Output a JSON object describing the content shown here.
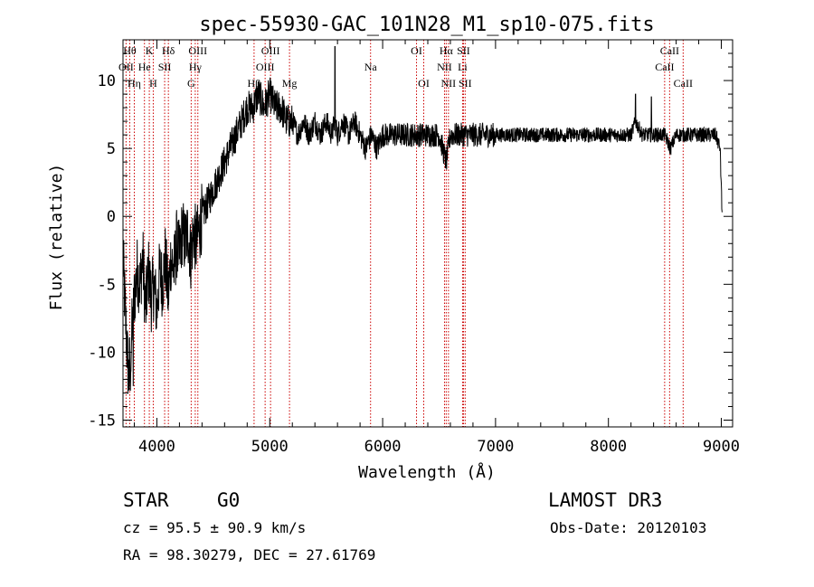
{
  "chart_data": {
    "type": "line",
    "title": "spec-55930-GAC_101N28_M1_sp10-075.fits",
    "xlabel": "Wavelength (Å)",
    "ylabel": "Flux (relative)",
    "xlim": [
      3700,
      9100
    ],
    "ylim": [
      -15.5,
      13
    ],
    "xticks": [
      {
        "value": 4000,
        "label": "4000"
      },
      {
        "value": 5000,
        "label": "5000"
      },
      {
        "value": 6000,
        "label": "6000"
      },
      {
        "value": 7000,
        "label": "7000"
      },
      {
        "value": 8000,
        "label": "8000"
      },
      {
        "value": 9000,
        "label": "9000"
      }
    ],
    "yticks": [
      {
        "value": 10,
        "label": "10"
      },
      {
        "value": 5,
        "label": "5"
      },
      {
        "value": 0,
        "label": "0"
      },
      {
        "value": -5,
        "label": "-5"
      },
      {
        "value": -10,
        "label": "-10"
      },
      {
        "value": -15,
        "label": "-15"
      }
    ],
    "line_color": "#000000",
    "marker_color": "#cc0000",
    "spectrum": {
      "x": [
        3700,
        3725,
        3750,
        3775,
        3800,
        3825,
        3850,
        3875,
        3900,
        3925,
        3950,
        3975,
        4000,
        4025,
        4050,
        4075,
        4100,
        4125,
        4150,
        4175,
        4200,
        4225,
        4250,
        4275,
        4300,
        4325,
        4350,
        4375,
        4400,
        4450,
        4500,
        4550,
        4600,
        4650,
        4700,
        4750,
        4800,
        4850,
        4900,
        4950,
        5000,
        5050,
        5100,
        5150,
        5200,
        5250,
        5300,
        5350,
        5400,
        5450,
        5500,
        5550,
        5575,
        5600,
        5650,
        5700,
        5750,
        5800,
        5850,
        5900,
        5950,
        6000,
        6100,
        6200,
        6300,
        6400,
        6500,
        6563,
        6600,
        6700,
        6800,
        6900,
        7000,
        7200,
        7400,
        7600,
        7800,
        8000,
        8100,
        8200,
        8240,
        8300,
        8400,
        8500,
        8550,
        8600,
        8650,
        8700,
        8750,
        8800,
        8850,
        8900,
        8950,
        8990,
        9005
      ],
      "y": [
        -3,
        -8,
        -12,
        -9,
        -6,
        -4,
        -5,
        -3,
        -7,
        -4,
        -6,
        -5,
        -7,
        -4,
        -5,
        -3,
        -6,
        -3,
        -4,
        -2,
        -3,
        -1,
        -2,
        -1,
        -3,
        -1,
        -2,
        -1,
        0,
        1,
        2,
        3,
        4,
        5,
        6,
        7,
        8,
        8,
        9,
        8,
        9,
        8,
        8,
        7,
        7,
        6,
        7,
        6,
        7,
        6,
        7,
        6,
        7,
        6,
        7,
        6,
        7,
        6,
        5,
        6,
        5,
        6,
        6,
        6,
        6,
        6,
        6,
        4,
        6,
        6,
        6,
        6,
        6,
        6,
        6,
        6,
        6,
        6,
        6,
        6,
        7,
        6,
        6,
        6,
        5,
        6,
        6,
        6,
        6,
        6,
        6,
        6,
        6,
        5,
        0.5
      ],
      "spikes": [
        {
          "x": 3765,
          "y": -12.8
        },
        {
          "x": 3790,
          "y": -12.5
        },
        {
          "x": 5577,
          "y": 12.5
        },
        {
          "x": 8240,
          "y": 9
        },
        {
          "x": 8380,
          "y": 8.8
        },
        {
          "x": 8990,
          "y": 5
        }
      ]
    },
    "line_markers": [
      {
        "x": 3760,
        "row": 0,
        "label": "Hθ"
      },
      {
        "x": 3727,
        "row": 1,
        "label": "OII"
      },
      {
        "x": 3800,
        "row": 2,
        "label": "Hη"
      },
      {
        "x": 3890,
        "row": 1,
        "label": "He"
      },
      {
        "x": 3933,
        "row": 0,
        "label": "K"
      },
      {
        "x": 3968,
        "row": 2,
        "label": "H"
      },
      {
        "x": 4069,
        "row": 1,
        "label": "SII"
      },
      {
        "x": 4102,
        "row": 0,
        "label": "Hδ"
      },
      {
        "x": 4340,
        "row": 1,
        "label": "Hγ"
      },
      {
        "x": 4363,
        "row": 0,
        "label": "OIII"
      },
      {
        "x": 4304,
        "row": 2,
        "label": "G"
      },
      {
        "x": 4861,
        "row": 2,
        "label": "Hβ"
      },
      {
        "x": 4959,
        "row": 1,
        "label": "OIII"
      },
      {
        "x": 5007,
        "row": 0,
        "label": "OIII"
      },
      {
        "x": 5175,
        "row": 2,
        "label": "Mg"
      },
      {
        "x": 5893,
        "row": 1,
        "label": "Na"
      },
      {
        "x": 6300,
        "row": 0,
        "label": "OI"
      },
      {
        "x": 6364,
        "row": 2,
        "label": "OI"
      },
      {
        "x": 6548,
        "row": 1,
        "label": "NII"
      },
      {
        "x": 6563,
        "row": 0,
        "label": "Hα"
      },
      {
        "x": 6583,
        "row": 2,
        "label": "NII"
      },
      {
        "x": 6708,
        "row": 1,
        "label": "Li"
      },
      {
        "x": 6716,
        "row": 0,
        "label": "SII"
      },
      {
        "x": 6731,
        "row": 2,
        "label": "SII"
      },
      {
        "x": 8498,
        "row": 1,
        "label": "CaII"
      },
      {
        "x": 8542,
        "row": 0,
        "label": "CaII"
      },
      {
        "x": 8662,
        "row": 2,
        "label": "CaII"
      }
    ]
  },
  "info": {
    "class": "STAR",
    "subclass": "G0",
    "survey": "LAMOST DR3",
    "cz": "cz = 95.5 ± 90.9 km/s",
    "obs_date": "Obs-Date: 20120103",
    "coords": "RA =  98.30279, DEC =  27.61769"
  }
}
